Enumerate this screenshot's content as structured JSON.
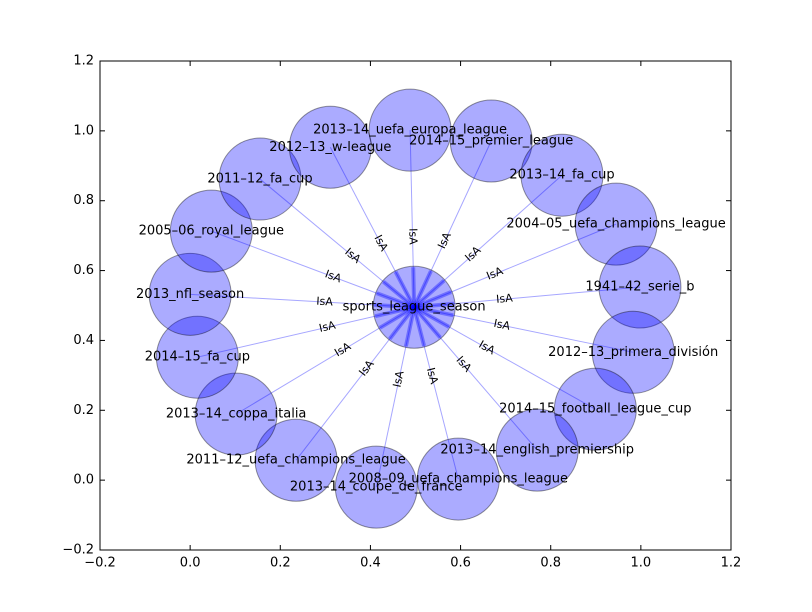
{
  "chart_data": {
    "type": "network",
    "xlim": [
      -0.2,
      1.2
    ],
    "ylim": [
      -0.2,
      1.2
    ],
    "xticks": [
      {
        "value": -0.2,
        "label": "−0.2"
      },
      {
        "value": 0,
        "label": "0.0"
      },
      0.2,
      0.4,
      0.6,
      0.8,
      {
        "value": 1,
        "label": "1.0"
      },
      1.2
    ],
    "yticks": [
      {
        "value": -0.2,
        "label": "−0.2"
      },
      {
        "value": 0,
        "label": "0.0"
      },
      0.2,
      0.4,
      0.6,
      0.8,
      {
        "value": 1,
        "label": "1.0"
      },
      1.2
    ],
    "color": "#0000ff",
    "center": {
      "label": "sports_league_season",
      "x": 0.497,
      "y": 0.495
    },
    "nodes": [
      {
        "label": "2013–14_uefa_europa_league",
        "x": 0.488,
        "y": 1.002,
        "edge_label": "IsA"
      },
      {
        "label": "2014–15_premier_league",
        "x": 0.668,
        "y": 0.971,
        "edge_label": "IsA"
      },
      {
        "label": "2013–14_fa_cup",
        "x": 0.825,
        "y": 0.873,
        "edge_label": "IsA"
      },
      {
        "label": "2004–05_uefa_champions_league",
        "x": 0.945,
        "y": 0.733,
        "edge_label": "IsA"
      },
      {
        "label": "1941–42_serie_b",
        "x": 0.998,
        "y": 0.553,
        "edge_label": "IsA"
      },
      {
        "label": "2012–13_primera_división",
        "x": 0.983,
        "y": 0.366,
        "edge_label": "IsA"
      },
      {
        "label": "2014–15_football_league_cup",
        "x": 0.899,
        "y": 0.203,
        "edge_label": "IsA"
      },
      {
        "label": "2013–14_english_premiership",
        "x": 0.77,
        "y": 0.086,
        "edge_label": "IsA"
      },
      {
        "label": "2008–09_uefa_champions_league",
        "x": 0.595,
        "y": 0.003,
        "edge_label": "IsA"
      },
      {
        "label": "2013–14_coupe_de_france",
        "x": 0.413,
        "y": -0.02,
        "edge_label": "IsA"
      },
      {
        "label": "2011–12_uefa_champions_league",
        "x": 0.235,
        "y": 0.057,
        "edge_label": "IsA"
      },
      {
        "label": "2013–14_coppa_italia",
        "x": 0.102,
        "y": 0.189,
        "edge_label": "IsA"
      },
      {
        "label": "2014–15_fa_cup",
        "x": 0.016,
        "y": 0.352,
        "edge_label": "IsA"
      },
      {
        "label": "2013_nfl_season",
        "x": 0.0,
        "y": 0.532,
        "edge_label": "IsA"
      },
      {
        "label": "2005–06_royal_league",
        "x": 0.047,
        "y": 0.713,
        "edge_label": "IsA"
      },
      {
        "label": "2011–12_fa_cup",
        "x": 0.155,
        "y": 0.862,
        "edge_label": "IsA"
      },
      {
        "label": "2012–13_w-league",
        "x": 0.311,
        "y": 0.953,
        "edge_label": "IsA"
      }
    ]
  }
}
